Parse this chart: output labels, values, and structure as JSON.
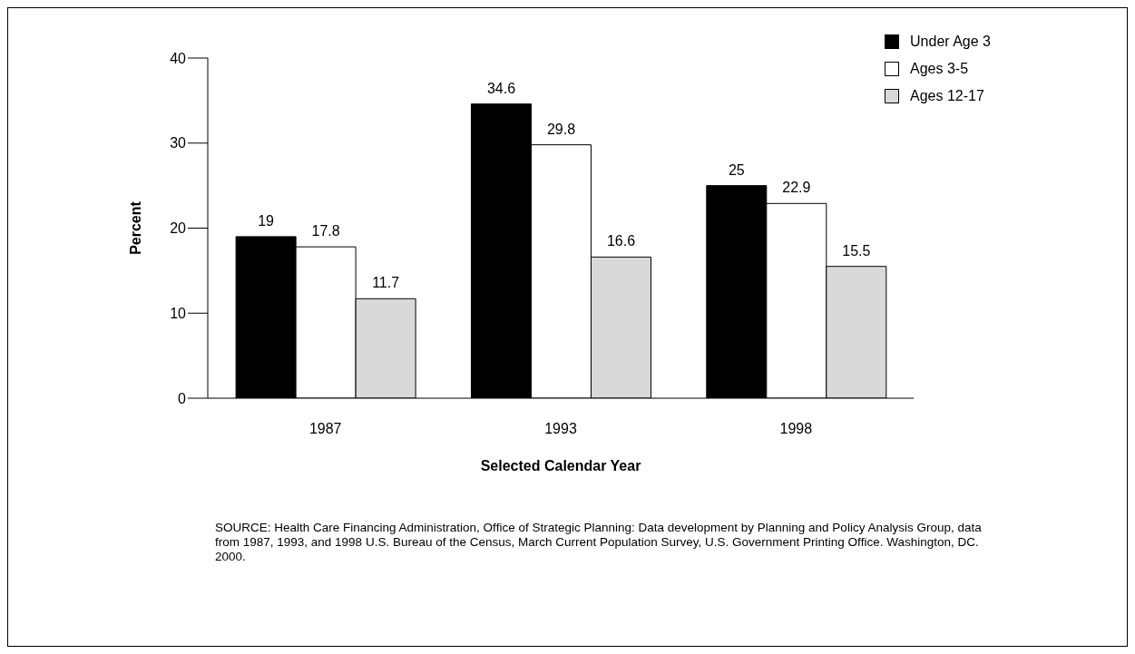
{
  "chart_data": {
    "type": "bar",
    "categories": [
      "1987",
      "1993",
      "1998"
    ],
    "series": [
      {
        "name": "Under Age 3",
        "color": "#000000",
        "values": [
          19,
          34.6,
          25
        ]
      },
      {
        "name": "Ages 3-5",
        "color": "#ffffff",
        "values": [
          17.8,
          29.8,
          22.9
        ]
      },
      {
        "name": "Ages 12-17",
        "color": "#d9d9d9",
        "values": [
          11.7,
          16.6,
          15.5
        ]
      }
    ],
    "xlabel": "Selected Calendar Year",
    "ylabel": "Percent",
    "ylim": [
      0,
      40
    ],
    "yticks": [
      0,
      10,
      20,
      30,
      40
    ],
    "grid": false,
    "legend": "top right",
    "data_labels": true,
    "annotations": [
      "SOURCE:  Health Care Financing Administration, Office of Strategic Planning: Data development by Planning and Policy Analysis Group, data from 1987, 1993, and 1998 U.S. Bureau of the Census, March Current Population Survey, U.S. Government Printing Office. Washington, DC. 2000."
    ]
  }
}
